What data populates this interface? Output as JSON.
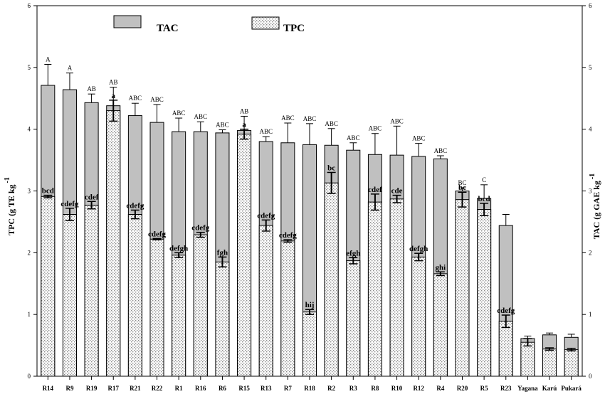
{
  "chart_data": {
    "type": "bar",
    "categories": [
      "R14",
      "R9",
      "R19",
      "R17",
      "R21",
      "R22",
      "R1",
      "R16",
      "R6",
      "R15",
      "R13",
      "R7",
      "R18",
      "R2",
      "R3",
      "R8",
      "R10",
      "R12",
      "R4",
      "R20",
      "R5",
      "R23",
      "Yagana",
      "Karú",
      "Pukará"
    ],
    "ylabel_left": "TPC (g TE kg",
    "ylabel_left_sup": "-1",
    "ylabel_right": "TAC (g GAE kg",
    "ylabel_right_sup": "-1",
    "ylim": [
      0,
      6
    ],
    "y_ticks": [
      "0",
      "1",
      "2",
      "3",
      "4",
      "5",
      "6"
    ],
    "legend": [
      {
        "name": "TAC",
        "color": "#c0c0c0"
      },
      {
        "name": "TPC",
        "pattern": "dotted"
      }
    ],
    "series": [
      {
        "name": "TAC",
        "values": [
          4.71,
          4.64,
          4.43,
          4.38,
          4.22,
          4.11,
          3.96,
          3.96,
          3.94,
          3.98,
          3.8,
          3.78,
          3.75,
          3.74,
          3.66,
          3.59,
          3.58,
          3.56,
          3.52,
          3.0,
          2.88,
          2.44,
          0.61,
          0.67,
          0.63
        ],
        "errors": [
          0.34,
          0.27,
          0.14,
          0.3,
          0.2,
          0.29,
          0.22,
          0.16,
          0.05,
          0.23,
          0.08,
          0.32,
          0.34,
          0.27,
          0.12,
          0.34,
          0.47,
          0.21,
          0.05,
          0.05,
          0.22,
          0.18,
          0.04,
          0.03,
          0.05
        ],
        "labels": [
          "A",
          "A",
          "AB",
          "AB",
          "ABC",
          "ABC",
          "ABC",
          "ABC",
          "ABC",
          "AB",
          "ABC",
          "ABC",
          "ABC",
          "ABC",
          "ABC",
          "ABC",
          "ABC",
          "ABC",
          "ABC",
          "BC",
          "C",
          "",
          "",
          "",
          ""
        ]
      },
      {
        "name": "TPC",
        "values": [
          2.91,
          2.62,
          2.77,
          4.3,
          2.62,
          2.22,
          1.96,
          2.29,
          1.85,
          3.92,
          2.44,
          2.19,
          1.04,
          3.13,
          1.87,
          2.82,
          2.87,
          1.93,
          1.66,
          2.86,
          2.7,
          0.89,
          0.55,
          0.44,
          0.43
        ],
        "errors": [
          0.02,
          0.1,
          0.06,
          0.17,
          0.07,
          0.01,
          0.04,
          0.04,
          0.08,
          0.08,
          0.09,
          0.02,
          0.04,
          0.17,
          0.05,
          0.13,
          0.06,
          0.06,
          0.03,
          0.12,
          0.1,
          0.1,
          0.06,
          0.02,
          0.02
        ],
        "labels": [
          "bcd",
          "cdefg",
          "cdef",
          "a",
          "cdefg",
          "cdefg",
          "defgh",
          "cdefg",
          "fgh",
          "a",
          "cdefg",
          "cdefg",
          "hij",
          "bc",
          "efgh",
          "cdef",
          "cde",
          "defgh",
          "ghi",
          "bc",
          "bcd",
          "cdefg",
          "",
          "",
          ""
        ]
      }
    ]
  }
}
